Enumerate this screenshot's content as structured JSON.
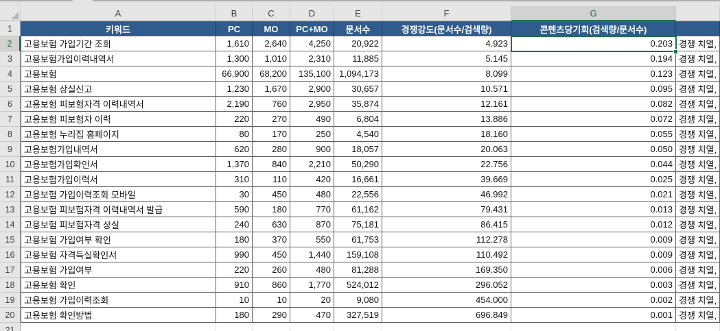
{
  "sheet": {
    "column_letters": [
      "A",
      "B",
      "C",
      "D",
      "E",
      "F",
      "G",
      ""
    ],
    "visible_row_numbers": [
      "1",
      "2",
      "3",
      "4",
      "5",
      "6",
      "7",
      "8",
      "9",
      "10",
      "11",
      "12",
      "13",
      "14",
      "15",
      "16",
      "17",
      "18",
      "19",
      "20",
      "21"
    ],
    "header": {
      "labels": [
        "키워드",
        "PC",
        "MO",
        "PC+MO",
        "문서수",
        "경쟁강도(문서수/검색량)",
        "콘텐츠당기회(검색량/문서수)",
        ""
      ]
    },
    "rows": [
      {
        "row": 2,
        "keyword": "고용보험 가입기간 조회",
        "pc": "1,610",
        "mo": "2,640",
        "pc_mo": "4,250",
        "docs": "20,922",
        "competition": "4.923",
        "opportunity": "0.203",
        "note": "경쟁 치열,"
      },
      {
        "row": 3,
        "keyword": "고용보험가입이력내역서",
        "pc": "1,300",
        "mo": "1,010",
        "pc_mo": "2,310",
        "docs": "11,885",
        "competition": "5.145",
        "opportunity": "0.194",
        "note": "경쟁 치열,"
      },
      {
        "row": 4,
        "keyword": "고용보험",
        "pc": "66,900",
        "mo": "68,200",
        "pc_mo": "135,100",
        "docs": "1,094,173",
        "competition": "8.099",
        "opportunity": "0.123",
        "note": "경쟁 치열,"
      },
      {
        "row": 5,
        "keyword": "고용보험 상실신고",
        "pc": "1,230",
        "mo": "1,670",
        "pc_mo": "2,900",
        "docs": "30,657",
        "competition": "10.571",
        "opportunity": "0.095",
        "note": "경쟁 치열,"
      },
      {
        "row": 6,
        "keyword": "고용보험 피보험자격 이력내역서",
        "pc": "2,190",
        "mo": "760",
        "pc_mo": "2,950",
        "docs": "35,874",
        "competition": "12.161",
        "opportunity": "0.082",
        "note": "경쟁 치열,"
      },
      {
        "row": 7,
        "keyword": "고용보험 피보험자 이력",
        "pc": "220",
        "mo": "270",
        "pc_mo": "490",
        "docs": "6,804",
        "competition": "13.886",
        "opportunity": "0.072",
        "note": "경쟁 치열,"
      },
      {
        "row": 8,
        "keyword": "고용보험 누리집 홈페이지",
        "pc": "80",
        "mo": "170",
        "pc_mo": "250",
        "docs": "4,540",
        "competition": "18.160",
        "opportunity": "0.055",
        "note": "경쟁 치열,"
      },
      {
        "row": 9,
        "keyword": "고용보험가입내역서",
        "pc": "620",
        "mo": "280",
        "pc_mo": "900",
        "docs": "18,057",
        "competition": "20.063",
        "opportunity": "0.050",
        "note": "경쟁 치열,"
      },
      {
        "row": 10,
        "keyword": "고용보험가입확인서",
        "pc": "1,370",
        "mo": "840",
        "pc_mo": "2,210",
        "docs": "50,290",
        "competition": "22.756",
        "opportunity": "0.044",
        "note": "경쟁 치열,"
      },
      {
        "row": 11,
        "keyword": "고용보험가입이력서",
        "pc": "310",
        "mo": "110",
        "pc_mo": "420",
        "docs": "16,661",
        "competition": "39.669",
        "opportunity": "0.025",
        "note": "경쟁 치열,"
      },
      {
        "row": 12,
        "keyword": "고용보험 가입이력조회 모바일",
        "pc": "30",
        "mo": "450",
        "pc_mo": "480",
        "docs": "22,556",
        "competition": "46.992",
        "opportunity": "0.021",
        "note": "경쟁 치열,"
      },
      {
        "row": 13,
        "keyword": "고용보험 피보험자격 이력내역서 발급",
        "pc": "590",
        "mo": "180",
        "pc_mo": "770",
        "docs": "61,162",
        "competition": "79.431",
        "opportunity": "0.013",
        "note": "경쟁 치열,"
      },
      {
        "row": 14,
        "keyword": "고용보험 피보험자격 상실",
        "pc": "240",
        "mo": "630",
        "pc_mo": "870",
        "docs": "75,181",
        "competition": "86.415",
        "opportunity": "0.012",
        "note": "경쟁 치열,"
      },
      {
        "row": 15,
        "keyword": "고용보험 가입여부 확인",
        "pc": "180",
        "mo": "370",
        "pc_mo": "550",
        "docs": "61,753",
        "competition": "112.278",
        "opportunity": "0.009",
        "note": "경쟁 치열,"
      },
      {
        "row": 16,
        "keyword": "고용보험 자격득실확인서",
        "pc": "990",
        "mo": "450",
        "pc_mo": "1,440",
        "docs": "159,108",
        "competition": "110.492",
        "opportunity": "0.009",
        "note": "경쟁 치열,"
      },
      {
        "row": 17,
        "keyword": "고용보험 가입여부",
        "pc": "220",
        "mo": "260",
        "pc_mo": "480",
        "docs": "81,288",
        "competition": "169.350",
        "opportunity": "0.006",
        "note": "경쟁 치열,"
      },
      {
        "row": 18,
        "keyword": "고용보험 확인",
        "pc": "910",
        "mo": "860",
        "pc_mo": "1,770",
        "docs": "524,012",
        "competition": "296.052",
        "opportunity": "0.003",
        "note": "경쟁 치열,"
      },
      {
        "row": 19,
        "keyword": "고용보험 가입이력조회",
        "pc": "10",
        "mo": "10",
        "pc_mo": "20",
        "docs": "9,080",
        "competition": "454.000",
        "opportunity": "0.002",
        "note": "경쟁 치열,"
      },
      {
        "row": 20,
        "keyword": "고용보험 확인방법",
        "pc": "180",
        "mo": "290",
        "pc_mo": "470",
        "docs": "327,519",
        "competition": "696.849",
        "opportunity": "0.001",
        "note": "경쟁 치열,"
      }
    ],
    "selection": {
      "active_cell": "G2",
      "active_value": "0.203",
      "selected_column": "G",
      "selected_row": "2"
    },
    "colors": {
      "header_fill": "#2F5B8D",
      "header_text": "#FFFFFF",
      "selection_green": "#1E7145",
      "grid_border": "#5E5E5E",
      "heading_gray": "#E6E6E6",
      "heading_selected_gray": "#D2D2D2"
    }
  }
}
